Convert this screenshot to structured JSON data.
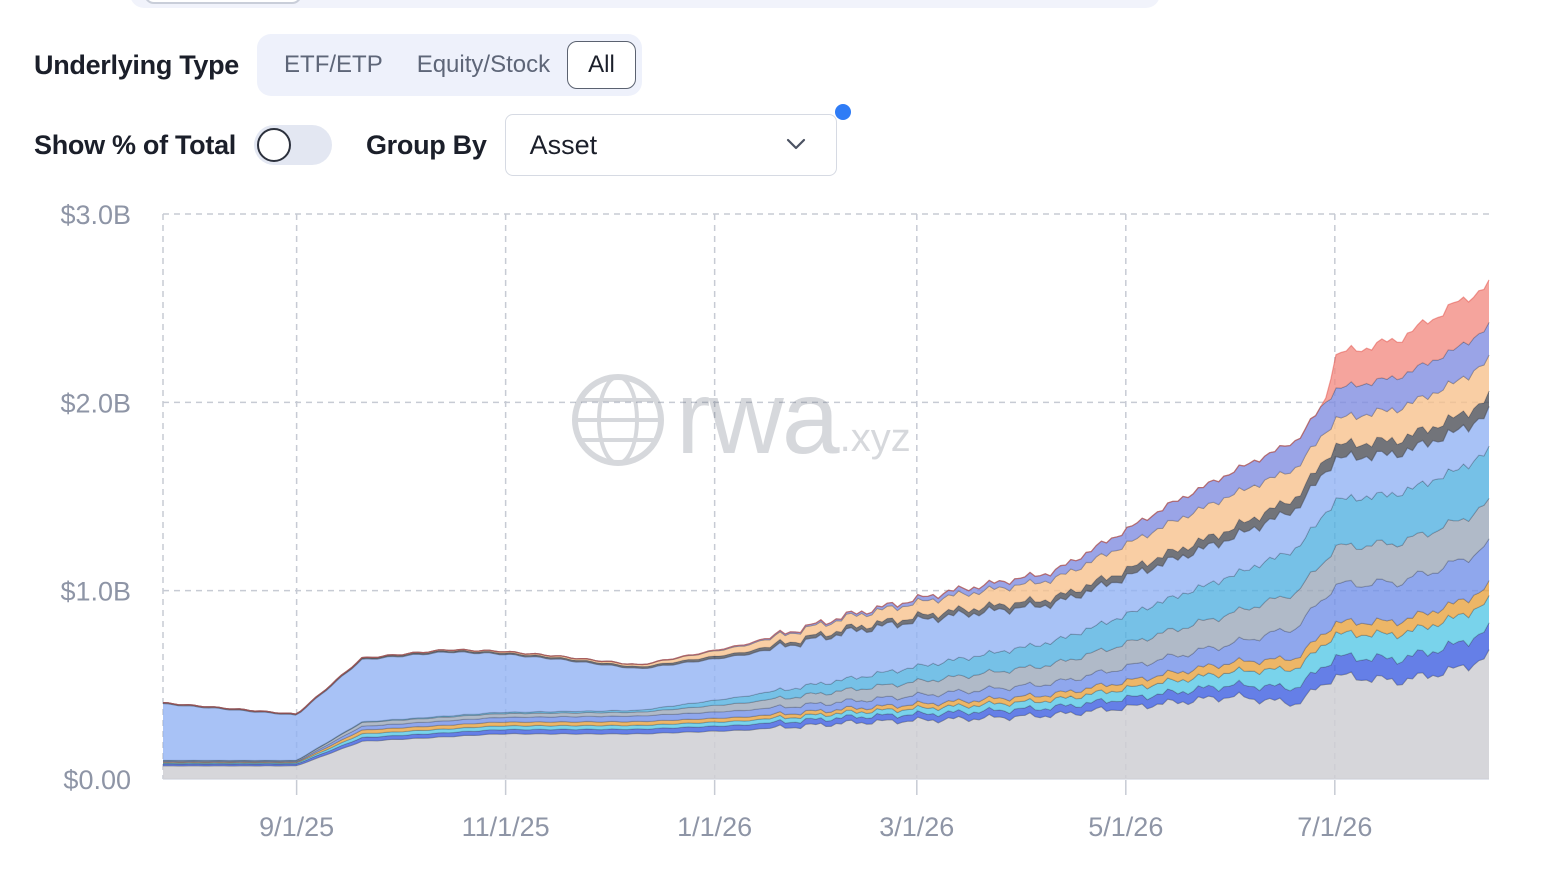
{
  "filters": {
    "underlying_type_label": "Underlying Type",
    "options": [
      "ETF/ETP",
      "Equity/Stock",
      "All"
    ],
    "selected": "All",
    "show_pct_label": "Show % of Total",
    "show_pct_enabled": false,
    "group_by_label": "Group By",
    "group_by_value": "Asset"
  },
  "watermark": {
    "main": "rwa",
    "suffix": ".xyz"
  },
  "colors": {
    "accent": "#2f7cf6",
    "grid": "#c7cbd4",
    "axis_text": "#8e95a6"
  },
  "chart_data": {
    "type": "area",
    "stacked": true,
    "yticks": [
      "$3.0B",
      "$2.0B",
      "$1.0B",
      "$0.00"
    ],
    "xticks": [
      "9/1/25",
      "11/1/25",
      "1/1/26",
      "3/1/26",
      "5/1/26",
      "7/1/26"
    ],
    "ylim": [
      0,
      3.0
    ],
    "x_range": [
      "2025-07-24",
      "2026-08-15"
    ],
    "grid": true,
    "series": [
      {
        "color": "#cfcfd3",
        "values": [
          [
            "2025-07-24",
            0.07
          ],
          [
            "2025-09-01",
            0.07
          ],
          [
            "2025-09-20",
            0.2
          ],
          [
            "2025-10-30",
            0.24
          ],
          [
            "2025-12-10",
            0.24
          ],
          [
            "2026-01-10",
            0.26
          ],
          [
            "2026-02-10",
            0.3
          ],
          [
            "2026-03-15",
            0.32
          ],
          [
            "2026-04-10",
            0.34
          ],
          [
            "2026-05-01",
            0.38
          ],
          [
            "2026-06-01",
            0.44
          ],
          [
            "2026-06-20",
            0.4
          ],
          [
            "2026-07-01",
            0.55
          ],
          [
            "2026-07-20",
            0.52
          ],
          [
            "2026-08-05",
            0.58
          ],
          [
            "2026-08-15",
            0.65
          ]
        ]
      },
      {
        "color": "#3a5be0",
        "values": [
          [
            "2025-07-24",
            0.01
          ],
          [
            "2025-09-01",
            0.01
          ],
          [
            "2025-09-20",
            0.02
          ],
          [
            "2025-12-10",
            0.025
          ],
          [
            "2026-02-10",
            0.03
          ],
          [
            "2026-04-10",
            0.04
          ],
          [
            "2026-06-01",
            0.06
          ],
          [
            "2026-07-01",
            0.1
          ],
          [
            "2026-08-15",
            0.14
          ]
        ]
      },
      {
        "color": "#53c7e6",
        "values": [
          [
            "2025-07-24",
            0.005
          ],
          [
            "2025-09-01",
            0.005
          ],
          [
            "2025-09-20",
            0.02
          ],
          [
            "2025-12-10",
            0.02
          ],
          [
            "2026-02-10",
            0.025
          ],
          [
            "2026-04-10",
            0.04
          ],
          [
            "2026-06-01",
            0.07
          ],
          [
            "2026-07-01",
            0.12
          ],
          [
            "2026-08-15",
            0.15
          ]
        ]
      },
      {
        "color": "#e8a23c",
        "values": [
          [
            "2025-07-24",
            0.004
          ],
          [
            "2025-09-01",
            0.004
          ],
          [
            "2025-09-20",
            0.02
          ],
          [
            "2025-12-10",
            0.02
          ],
          [
            "2026-02-10",
            0.02
          ],
          [
            "2026-04-10",
            0.03
          ],
          [
            "2026-06-01",
            0.05
          ],
          [
            "2026-07-01",
            0.06
          ],
          [
            "2026-08-15",
            0.08
          ]
        ]
      },
      {
        "color": "#6f8ee8",
        "values": [
          [
            "2025-07-24",
            0.004
          ],
          [
            "2025-09-01",
            0.004
          ],
          [
            "2025-09-20",
            0.02
          ],
          [
            "2025-12-10",
            0.03
          ],
          [
            "2026-02-10",
            0.04
          ],
          [
            "2026-04-10",
            0.06
          ],
          [
            "2026-06-01",
            0.1
          ],
          [
            "2026-07-01",
            0.2
          ],
          [
            "2026-08-15",
            0.22
          ]
        ]
      },
      {
        "color": "#9aa7b8",
        "values": [
          [
            "2025-07-24",
            0.004
          ],
          [
            "2025-09-01",
            0.004
          ],
          [
            "2025-09-20",
            0.02
          ],
          [
            "2025-12-10",
            0.02
          ],
          [
            "2026-02-10",
            0.06
          ],
          [
            "2026-04-10",
            0.1
          ],
          [
            "2026-06-01",
            0.16
          ],
          [
            "2026-07-01",
            0.2
          ],
          [
            "2026-08-15",
            0.22
          ]
        ]
      },
      {
        "color": "#4fb0e0",
        "values": [
          [
            "2025-07-24",
            0.002
          ],
          [
            "2025-09-01",
            0.002
          ],
          [
            "2025-12-10",
            0.01
          ],
          [
            "2026-02-10",
            0.06
          ],
          [
            "2026-04-10",
            0.12
          ],
          [
            "2026-06-01",
            0.2
          ],
          [
            "2026-07-01",
            0.25
          ],
          [
            "2026-08-15",
            0.28
          ]
        ]
      },
      {
        "color": "#8fb1f4",
        "values": [
          [
            "2025-07-24",
            0.3
          ],
          [
            "2025-09-01",
            0.24
          ],
          [
            "2025-09-20",
            0.33
          ],
          [
            "2025-10-15",
            0.34
          ],
          [
            "2025-11-15",
            0.28
          ],
          [
            "2025-12-10",
            0.22
          ],
          [
            "2026-01-10",
            0.22
          ],
          [
            "2026-02-10",
            0.25
          ],
          [
            "2026-03-10",
            0.24
          ],
          [
            "2026-04-10",
            0.2
          ],
          [
            "2026-05-01",
            0.2
          ],
          [
            "2026-06-01",
            0.2
          ],
          [
            "2026-07-01",
            0.22
          ],
          [
            "2026-08-15",
            0.2
          ]
        ]
      },
      {
        "color": "#4a4d55",
        "values": [
          [
            "2025-07-24",
            0.005
          ],
          [
            "2025-09-01",
            0.005
          ],
          [
            "2025-12-10",
            0.01
          ],
          [
            "2026-02-10",
            0.02
          ],
          [
            "2026-04-10",
            0.03
          ],
          [
            "2026-06-01",
            0.05
          ],
          [
            "2026-07-01",
            0.07
          ],
          [
            "2026-08-15",
            0.08
          ]
        ]
      },
      {
        "color": "#f7c08a",
        "values": [
          [
            "2025-07-24",
            0.0
          ],
          [
            "2025-09-01",
            0.0
          ],
          [
            "2025-12-10",
            0.01
          ],
          [
            "2026-02-10",
            0.06
          ],
          [
            "2026-04-10",
            0.1
          ],
          [
            "2026-05-15",
            0.16
          ],
          [
            "2026-06-01",
            0.18
          ],
          [
            "2026-07-01",
            0.14
          ],
          [
            "2026-08-15",
            0.2
          ]
        ]
      },
      {
        "color": "#7d8be0",
        "values": [
          [
            "2025-07-24",
            0.0
          ],
          [
            "2025-09-01",
            0.0
          ],
          [
            "2025-12-10",
            0.0
          ],
          [
            "2026-02-10",
            0.01
          ],
          [
            "2026-04-10",
            0.04
          ],
          [
            "2026-05-15",
            0.1
          ],
          [
            "2026-06-01",
            0.12
          ],
          [
            "2026-07-01",
            0.16
          ],
          [
            "2026-08-15",
            0.18
          ]
        ]
      },
      {
        "color": "#f28b82",
        "values": [
          [
            "2025-07-24",
            0.0
          ],
          [
            "2026-06-28",
            0.0
          ],
          [
            "2026-07-01",
            0.18
          ],
          [
            "2026-07-20",
            0.2
          ],
          [
            "2026-08-05",
            0.24
          ],
          [
            "2026-08-15",
            0.22
          ]
        ]
      }
    ]
  }
}
